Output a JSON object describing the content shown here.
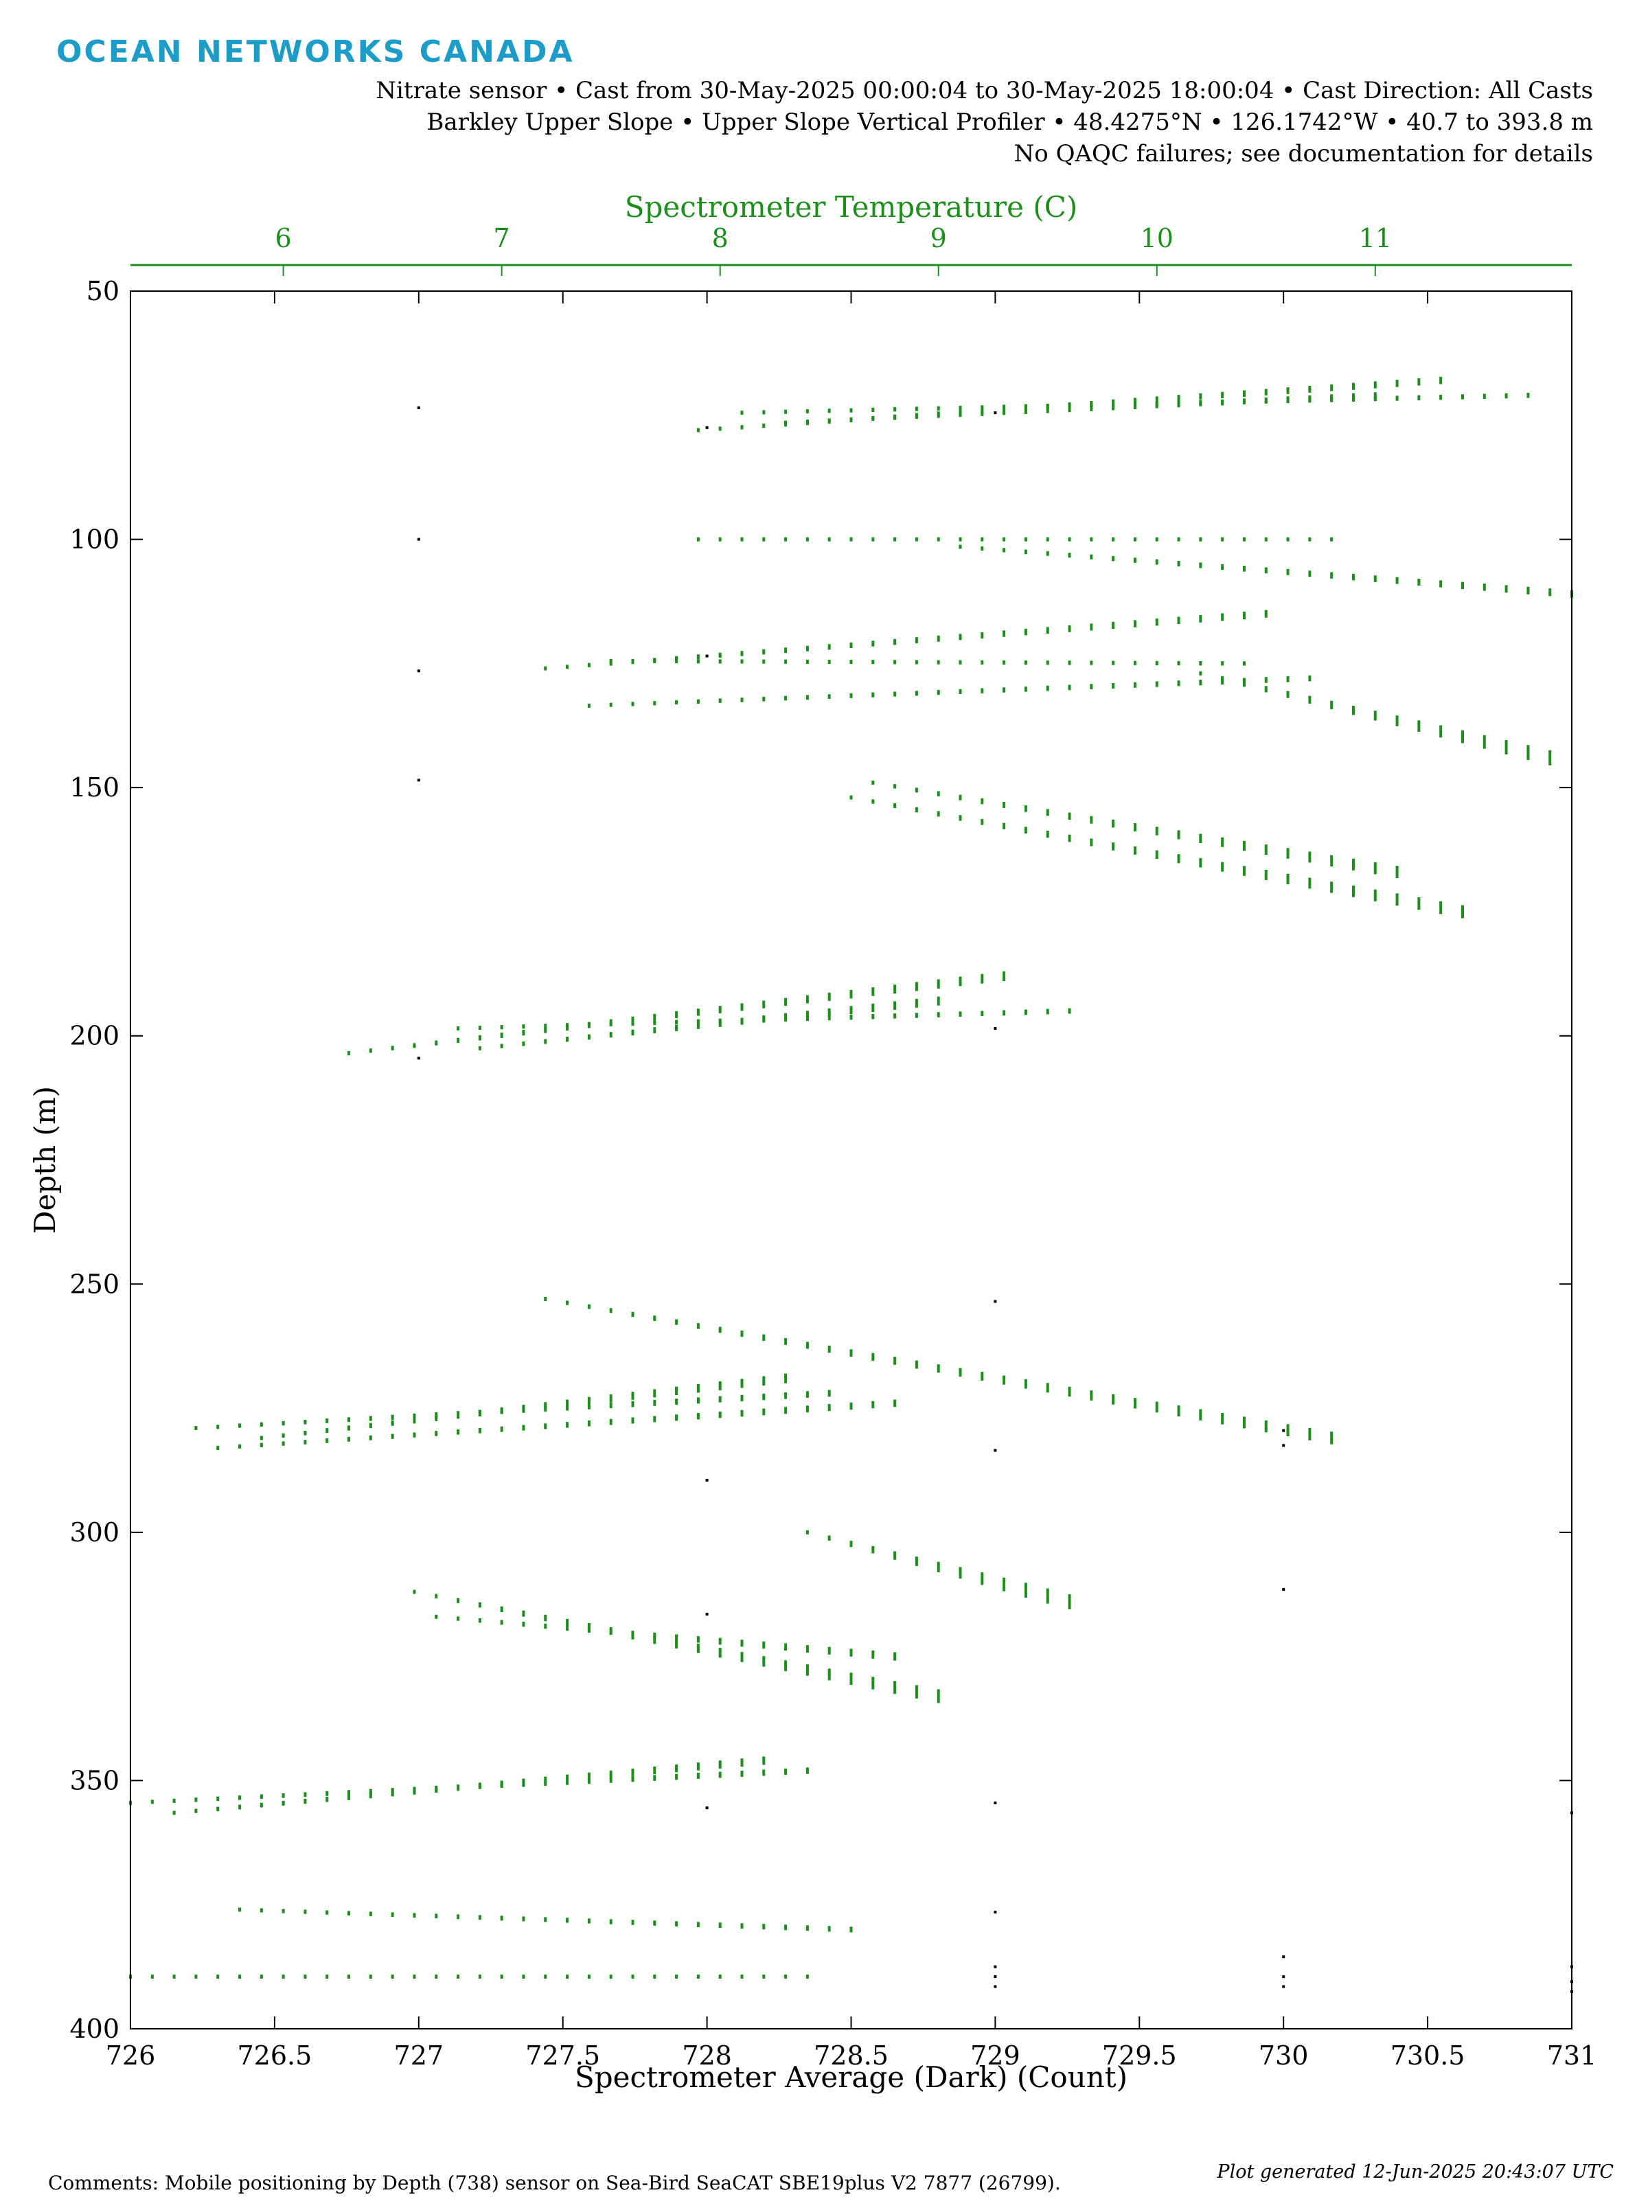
{
  "logo": "OCEAN NETWORKS CANADA",
  "header": {
    "line1": "Nitrate sensor • Cast from 30-May-2025 00:00:04 to 30-May-2025 18:00:04 • Cast Direction: All Casts",
    "line2": "Barkley Upper Slope • Upper Slope Vertical Profiler • 48.4275°N • 126.1742°W • 40.7 to 393.8 m",
    "line3": "No QAQC failures; see documentation for details"
  },
  "footer": {
    "generated": "Plot generated 12-Jun-2025 20:43:07 UTC",
    "comments": "Comments: Mobile positioning by Depth (738) sensor on Sea-Bird SeaCAT SBE19plus V2 7877 (26799)."
  },
  "colors": {
    "temperature": "#1a8f1a",
    "average": "#000000",
    "logo": "#1c9cc8"
  },
  "chart_data": {
    "type": "scatter",
    "xlabel": "Spectrometer Average (Dark) (Count)",
    "x2label": "Spectrometer Temperature (C)",
    "ylabel": "Depth (m)",
    "xlim": [
      726,
      731
    ],
    "x2lim": [
      5.3,
      11.9
    ],
    "ylim": [
      400,
      50
    ],
    "y_inverted": true,
    "xticks": [
      "726",
      "726.5",
      "727",
      "727.5",
      "728",
      "728.5",
      "729",
      "729.5",
      "730",
      "730.5",
      "731"
    ],
    "x2ticks": [
      "6",
      "7",
      "8",
      "9",
      "10",
      "11"
    ],
    "yticks": [
      "50",
      "100",
      "150",
      "200",
      "250",
      "300",
      "350",
      "400"
    ],
    "grid": false,
    "series": [
      {
        "axis": "bottom",
        "color": "#000000",
        "points": [
          [
            727,
            73.5
          ],
          [
            727,
            100
          ],
          [
            727,
            126.5
          ],
          [
            727,
            148.5
          ],
          [
            727,
            204.5
          ],
          [
            728,
            77.5
          ],
          [
            728,
            123.5
          ],
          [
            728,
            289.5
          ],
          [
            728,
            316.5
          ],
          [
            728,
            355.5
          ],
          [
            729,
            74.5
          ],
          [
            729,
            198.5
          ],
          [
            729,
            253.5
          ],
          [
            729,
            283.5
          ],
          [
            729,
            354.5
          ],
          [
            729,
            376.5
          ],
          [
            729,
            387.5
          ],
          [
            729,
            389.5
          ],
          [
            729,
            391.5
          ],
          [
            730,
            279.5
          ],
          [
            730,
            282.5
          ],
          [
            730,
            311.5
          ],
          [
            730,
            385.5
          ],
          [
            730,
            389.5
          ],
          [
            730,
            391.5
          ],
          [
            731,
            356.5
          ],
          [
            731,
            387.5
          ],
          [
            731,
            390.5
          ],
          [
            731,
            392.5
          ]
        ]
      },
      {
        "axis": "top",
        "color": "#1a8f1a",
        "segments": [
          {
            "t": [
              8.1,
              11.7
            ],
            "d": [
              74.5,
              71
            ]
          },
          {
            "t": [
              7.9,
              11.3
            ],
            "d": [
              78,
              68
            ]
          },
          {
            "t": [
              8.3,
              11.0
            ],
            "d": [
              76.5,
              71
            ]
          },
          {
            "t": [
              7.9,
              10.8
            ],
            "d": [
              100,
              100
            ]
          },
          {
            "t": [
              9.1,
              11.9
            ],
            "d": [
              101.5,
              111
            ]
          },
          {
            "t": [
              7.2,
              10.5
            ],
            "d": [
              126,
              115
            ]
          },
          {
            "t": [
              7.5,
              10.4
            ],
            "d": [
              124.5,
              125
            ]
          },
          {
            "t": [
              7.4,
              10.7
            ],
            "d": [
              133.5,
              128
            ]
          },
          {
            "t": [
              10.2,
              11.8
            ],
            "d": [
              127,
              144
            ]
          },
          {
            "t": [
              8.7,
              11.1
            ],
            "d": [
              149,
              167
            ]
          },
          {
            "t": [
              8.6,
              11.4
            ],
            "d": [
              152,
              175
            ]
          },
          {
            "t": [
              6.3,
              9.3
            ],
            "d": [
              203.5,
              188
            ]
          },
          {
            "t": [
              6.8,
              9.6
            ],
            "d": [
              198.5,
              195
            ]
          },
          {
            "t": [
              6.9,
              9.0
            ],
            "d": [
              202.5,
              193
            ]
          },
          {
            "t": [
              7.2,
              10.8
            ],
            "d": [
              253,
              281
            ]
          },
          {
            "t": [
              5.6,
              8.5
            ],
            "d": [
              279,
              272
            ]
          },
          {
            "t": [
              5.7,
              8.8
            ],
            "d": [
              283,
              274
            ]
          },
          {
            "t": [
              5.9,
              8.3
            ],
            "d": [
              281,
              269
            ]
          },
          {
            "t": [
              8.4,
              9.6
            ],
            "d": [
              300,
              314
            ]
          },
          {
            "t": [
              6.6,
              9.0
            ],
            "d": [
              312,
              333
            ]
          },
          {
            "t": [
              6.7,
              8.8
            ],
            "d": [
              317,
              325
            ]
          },
          {
            "t": [
              5.3,
              8.4
            ],
            "d": [
              354.5,
              348
            ]
          },
          {
            "t": [
              5.5,
              8.2
            ],
            "d": [
              356.5,
              346
            ]
          },
          {
            "t": [
              5.8,
              8.6
            ],
            "d": [
              376,
              380
            ]
          },
          {
            "t": [
              5.3,
              8.4
            ],
            "d": [
              389.5,
              389.5
            ]
          }
        ]
      }
    ]
  }
}
